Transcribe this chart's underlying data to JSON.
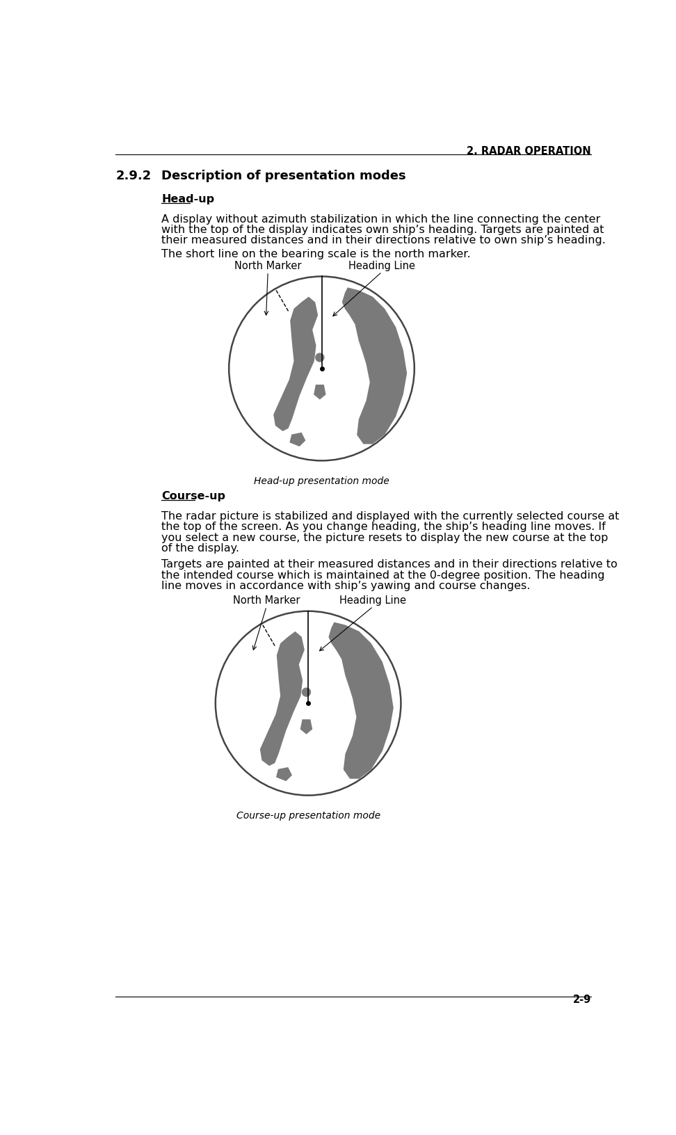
{
  "page_header": "2. RADAR OPERATION",
  "section_num": "2.9.2",
  "section_title": "Description of presentation modes",
  "subsection1": "Head-up",
  "para1a": "A display without azimuth stabilization in which the line connecting the center",
  "para1b": "with the top of the display indicates own ship’s heading. Targets are painted at",
  "para1c": "their measured distances and in their directions relative to own ship’s heading.",
  "para2": "The short line on the bearing scale is the north marker.",
  "diagram1_caption": "Head-up presentation mode",
  "diagram1_label1": "North Marker",
  "diagram1_label2": "Heading Line",
  "subsection2": "Course-up",
  "para3a": "The radar picture is stabilized and displayed with the currently selected course at",
  "para3b": "the top of the screen. As you change heading, the ship’s heading line moves. If",
  "para3c": "you select a new course, the picture resets to display the new course at the top",
  "para3d": "of the display.",
  "para4a": "Targets are painted at their measured distances and in their directions relative to",
  "para4b": "the intended course which is maintained at the 0-degree position. The heading",
  "para4c": "line moves in accordance with ship’s yawing and course changes.",
  "diagram2_caption": "Course-up presentation mode",
  "diagram2_label1": "North Marker",
  "diagram2_label2": "Heading Line",
  "page_num": "2-9",
  "bg_color": "#ffffff",
  "text_color": "#000000",
  "shape_fill": "#7a7a7a",
  "edge_color": "#444444",
  "font_main": 11.5,
  "font_header": 10.5,
  "font_section": 13,
  "font_caption": 10
}
